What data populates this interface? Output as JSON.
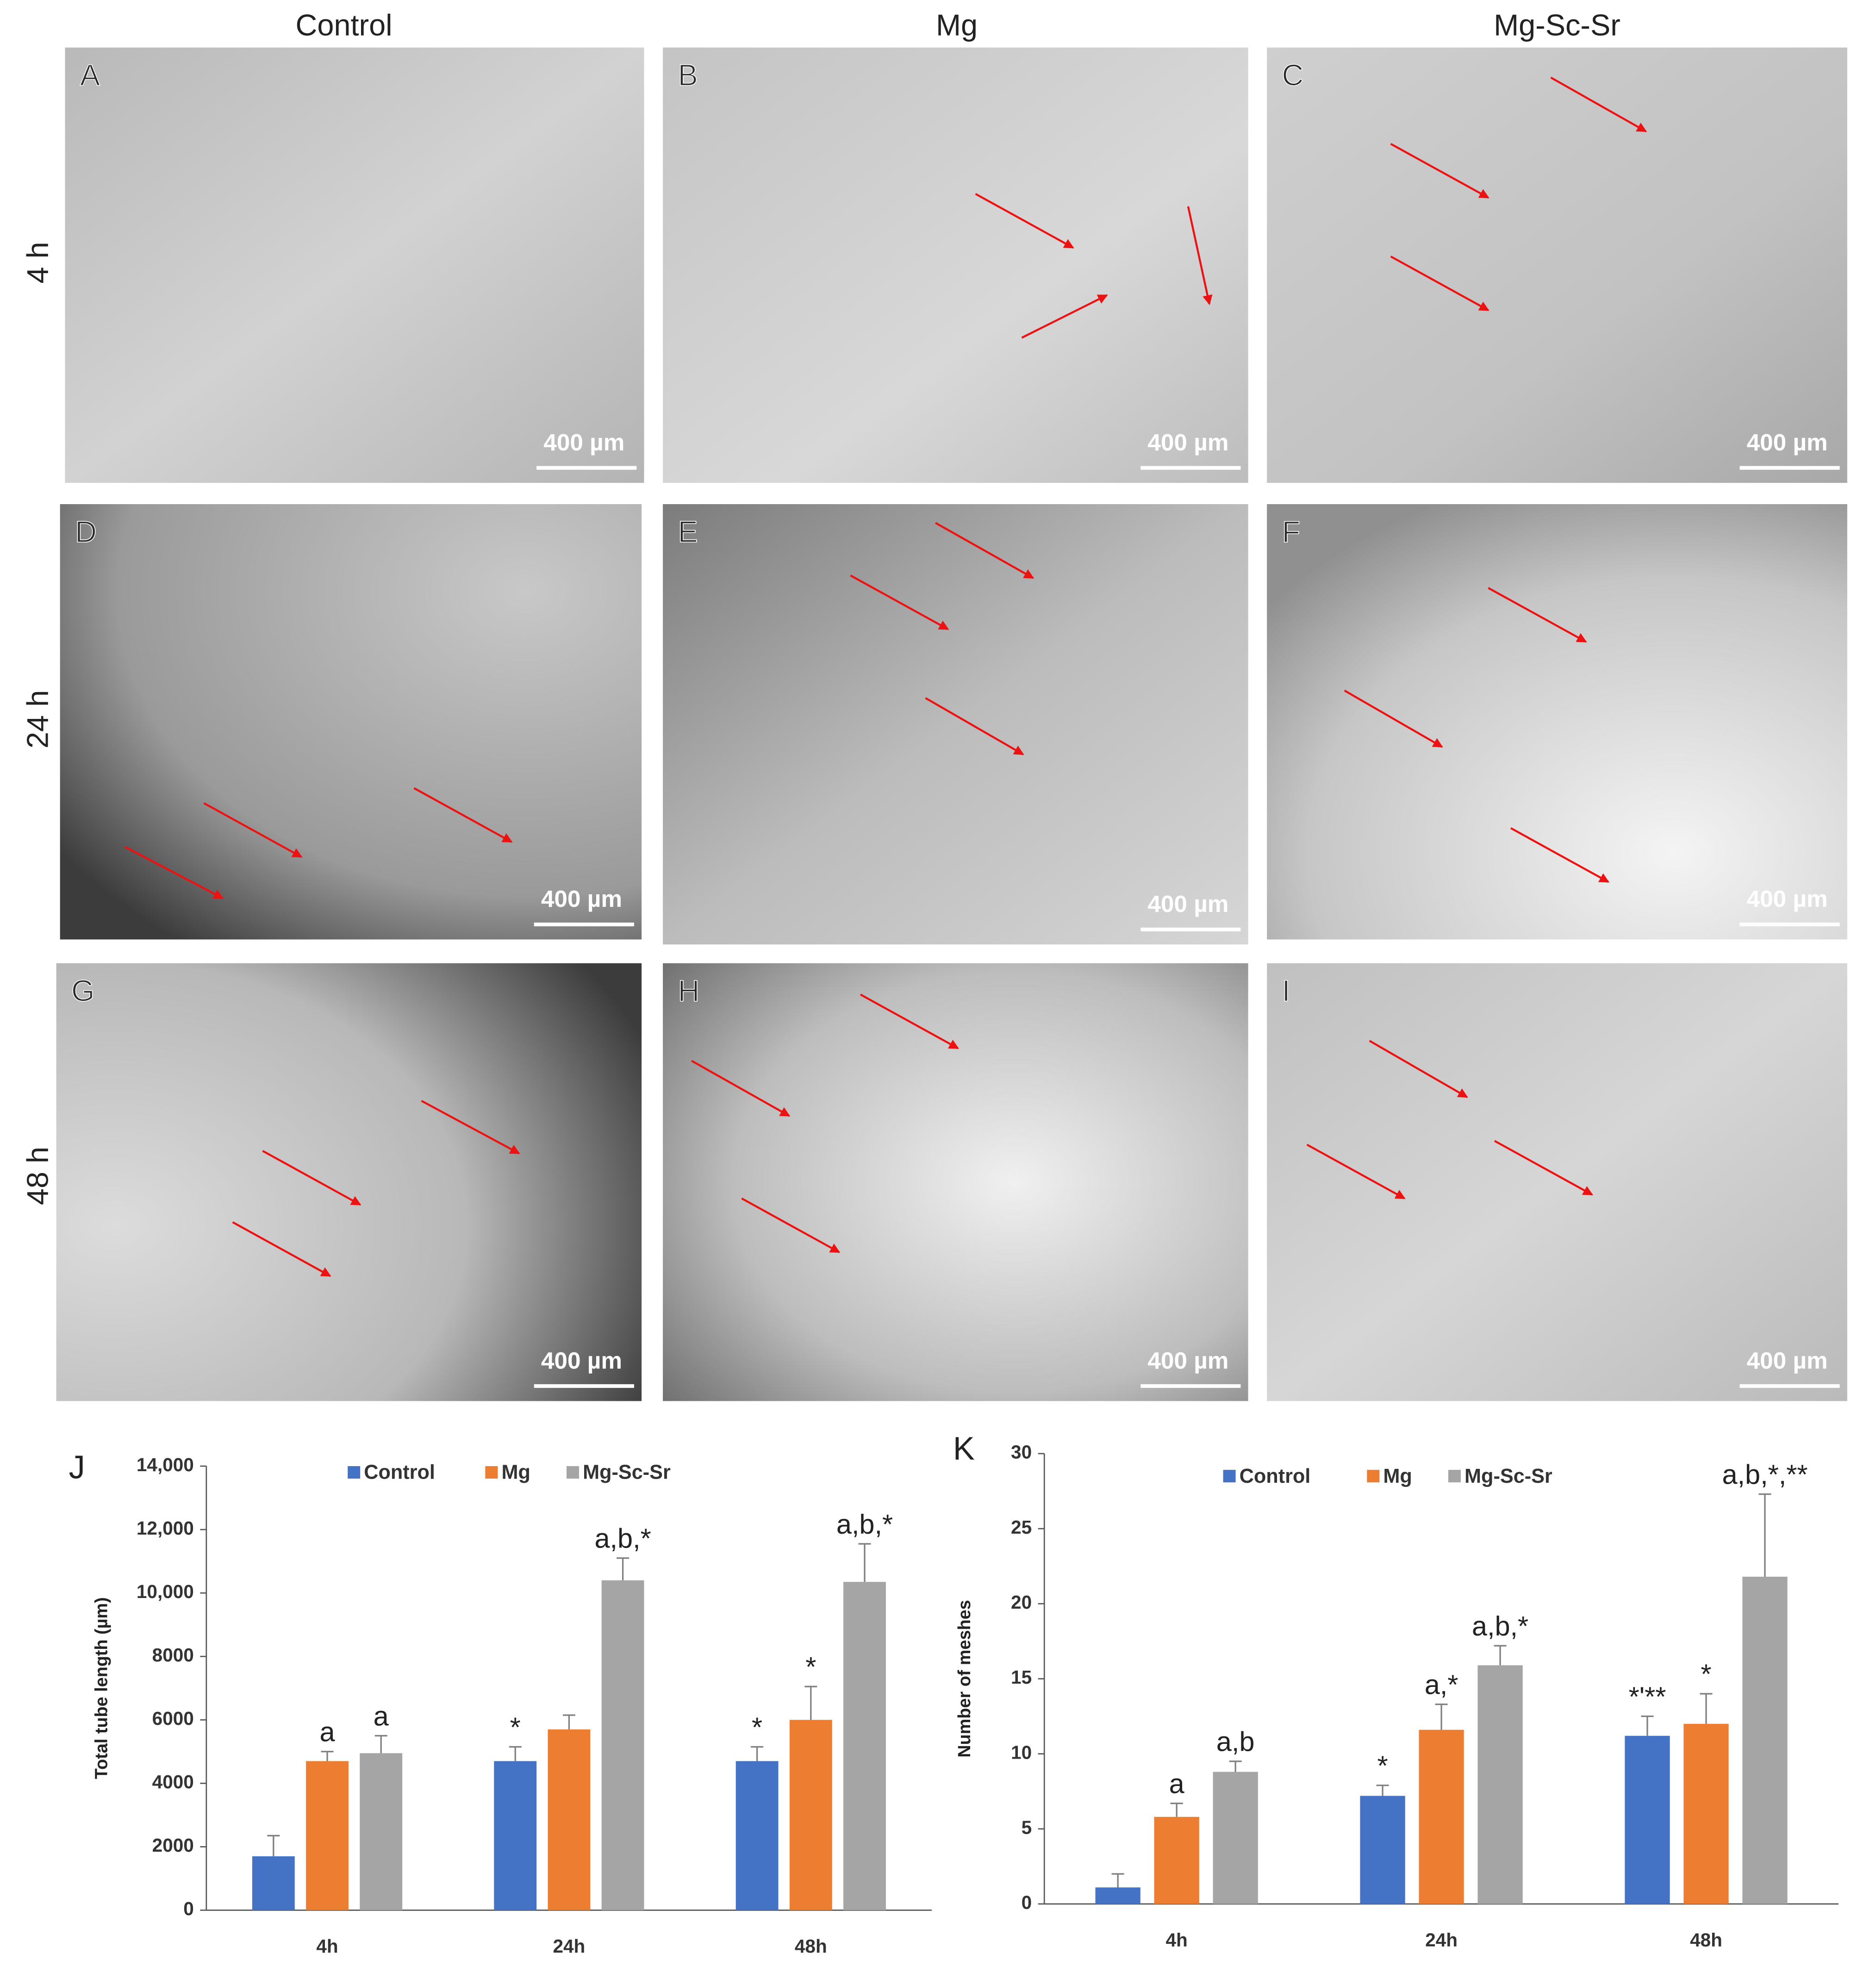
{
  "column_headers": [
    "Control",
    "Mg",
    "Mg-Sc-Sr"
  ],
  "row_labels": [
    "4 h",
    "24 h",
    "48 h"
  ],
  "panels": [
    {
      "label": "A",
      "scale_bar": "400 µm"
    },
    {
      "label": "B",
      "scale_bar": "400 µm"
    },
    {
      "label": "C",
      "scale_bar": "400 µm"
    },
    {
      "label": "D",
      "scale_bar": "400 µm"
    },
    {
      "label": "E",
      "scale_bar": "400 µm"
    },
    {
      "label": "F",
      "scale_bar": "400 µm"
    },
    {
      "label": "G",
      "scale_bar": "400 µm"
    },
    {
      "label": "H",
      "scale_bar": "400 µm"
    },
    {
      "label": "I",
      "scale_bar": "400 µm"
    }
  ],
  "chart_data": [
    {
      "type": "bar",
      "panel_label": "J",
      "y_label": "Total tube length (µm)",
      "categories": [
        "4h",
        "24h",
        "48h"
      ],
      "series": [
        {
          "name": "Control",
          "color": "#4472c4",
          "values": [
            1700,
            4700,
            4700
          ],
          "errors": [
            650,
            450,
            450
          ],
          "annotations": [
            null,
            "*",
            "*"
          ]
        },
        {
          "name": "Mg",
          "color": "#ed7d31",
          "values": [
            4700,
            5700,
            6000
          ],
          "errors": [
            300,
            450,
            1050
          ],
          "annotations": [
            "a",
            null,
            "*"
          ]
        },
        {
          "name": "Mg-Sc-Sr",
          "color": "#a5a5a5",
          "values": [
            4950,
            10400,
            10350
          ],
          "errors": [
            550,
            700,
            1200
          ],
          "annotations": [
            "a",
            "a,b,*",
            "a,b,*"
          ]
        }
      ],
      "ylim": [
        0,
        14000
      ],
      "yticks": [
        0,
        2000,
        4000,
        6000,
        8000,
        {
          "value": 10000,
          "label": "10,000"
        },
        {
          "value": 12000,
          "label": "12,000"
        },
        {
          "value": 14000,
          "label": "14,000"
        }
      ],
      "legend": "top"
    },
    {
      "type": "bar",
      "panel_label": "K",
      "y_label": "Number of meshes",
      "categories": [
        "4h",
        "24h",
        "48h"
      ],
      "series": [
        {
          "name": "Control",
          "color": "#4472c4",
          "values": [
            1.1,
            7.2,
            11.2
          ],
          "errors": [
            0.9,
            0.7,
            1.3
          ],
          "annotations": [
            null,
            "*",
            "*'**"
          ]
        },
        {
          "name": "Mg",
          "color": "#ed7d31",
          "values": [
            5.8,
            11.6,
            12.0
          ],
          "errors": [
            0.9,
            1.7,
            2.0
          ],
          "annotations": [
            "a",
            "a,*",
            "*"
          ]
        },
        {
          "name": "Mg-Sc-Sr",
          "color": "#a5a5a5",
          "values": [
            8.8,
            15.9,
            21.8
          ],
          "errors": [
            0.7,
            1.3,
            5.5
          ],
          "annotations": [
            "a,b",
            "a,b,*",
            "a,b,*,**"
          ]
        }
      ],
      "ylim": [
        0,
        30
      ],
      "yticks": [
        0,
        5,
        10,
        15,
        20,
        25,
        30
      ],
      "legend": "top"
    }
  ]
}
